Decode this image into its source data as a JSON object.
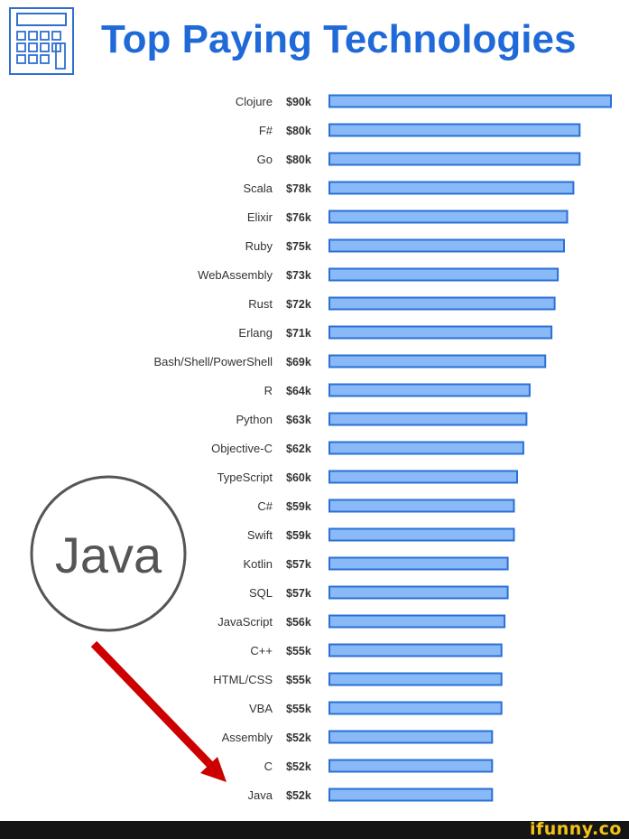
{
  "title": "Top Paying Technologies",
  "logo_icon": "calculator-icon",
  "callout": {
    "text": "Java"
  },
  "watermark": "ifunny.co",
  "colors": {
    "title": "#1f6ad8",
    "bar_fill": "#8ab9f7",
    "bar_stroke": "#2a70d6",
    "arrow": "#cc0000",
    "footer": "#151515",
    "watermark": "#f2c21b"
  },
  "chart_data": {
    "type": "bar",
    "orientation": "horizontal",
    "title": "Top Paying Technologies",
    "xlabel": "",
    "ylabel": "",
    "xlim": [
      0,
      90
    ],
    "unit": "$k",
    "categories": [
      "Clojure",
      "F#",
      "Go",
      "Scala",
      "Elixir",
      "Ruby",
      "WebAssembly",
      "Rust",
      "Erlang",
      "Bash/Shell/PowerShell",
      "R",
      "Python",
      "Objective-C",
      "TypeScript",
      "C#",
      "Swift",
      "Kotlin",
      "SQL",
      "JavaScript",
      "C++",
      "HTML/CSS",
      "VBA",
      "Assembly",
      "C",
      "Java"
    ],
    "values": [
      90,
      80,
      80,
      78,
      76,
      75,
      73,
      72,
      71,
      69,
      64,
      63,
      62,
      60,
      59,
      59,
      57,
      57,
      56,
      55,
      55,
      55,
      52,
      52,
      52
    ],
    "value_labels": [
      "$90k",
      "$80k",
      "$80k",
      "$78k",
      "$76k",
      "$75k",
      "$73k",
      "$72k",
      "$71k",
      "$69k",
      "$64k",
      "$63k",
      "$62k",
      "$60k",
      "$59k",
      "$59k",
      "$57k",
      "$57k",
      "$56k",
      "$55k",
      "$55k",
      "$55k",
      "$52k",
      "$52k",
      "$52k"
    ]
  }
}
